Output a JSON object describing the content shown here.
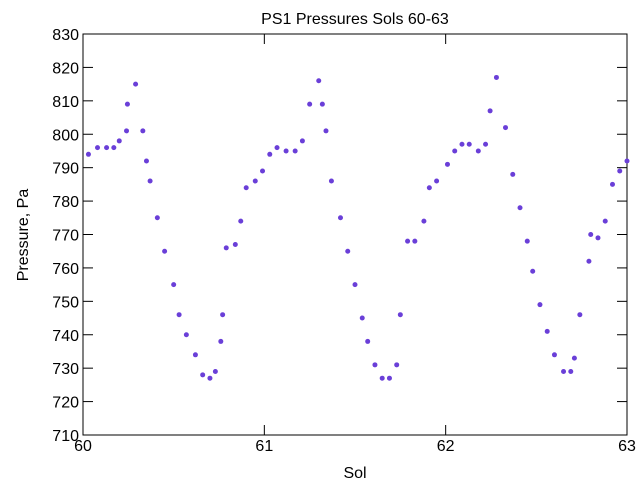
{
  "chart_data": {
    "type": "scatter",
    "title": "PS1 Pressures Sols 60-63",
    "x_label": "Sol",
    "y_label": "Pressure, Pa",
    "xlim": [
      60,
      63
    ],
    "xticks": [
      60,
      61,
      62,
      63
    ],
    "ylim": [
      710,
      830
    ],
    "yticks": [
      710,
      720,
      730,
      740,
      750,
      760,
      770,
      780,
      790,
      800,
      810,
      820,
      830
    ],
    "series": [
      {
        "color": "#6a3fd8",
        "x": [
          60.03,
          60.08,
          60.13,
          60.17,
          60.2,
          60.24,
          60.245,
          60.29,
          60.33,
          60.35,
          60.37,
          60.41,
          60.45,
          60.5,
          60.53,
          60.57,
          60.62,
          60.66,
          60.7,
          60.73,
          60.76,
          60.77,
          60.79,
          60.84,
          60.87,
          60.9,
          60.95,
          60.99,
          61.03,
          61.07,
          61.12,
          61.17,
          61.21,
          61.25,
          61.3,
          61.32,
          61.34,
          61.37,
          61.42,
          61.46,
          61.5,
          61.54,
          61.57,
          61.61,
          61.65,
          61.69,
          61.73,
          61.75,
          61.79,
          61.83,
          61.88,
          61.91,
          61.95,
          62.01,
          62.05,
          62.09,
          62.13,
          62.18,
          62.22,
          62.245,
          62.28,
          62.33,
          62.37,
          62.41,
          62.45,
          62.48,
          62.52,
          62.56,
          62.6,
          62.65,
          62.69,
          62.71,
          62.74,
          62.79,
          62.8,
          62.84,
          62.88,
          62.92,
          62.96,
          63.0
        ],
        "values": [
          794,
          796,
          796,
          796,
          798,
          801,
          809,
          815,
          801,
          792,
          786,
          775,
          765,
          755,
          746,
          740,
          734,
          728,
          727,
          729,
          738,
          746,
          766,
          767,
          774,
          784,
          786,
          789,
          794,
          796,
          795,
          795,
          798,
          809,
          816,
          809,
          801,
          786,
          775,
          765,
          755,
          745,
          738,
          731,
          727,
          727,
          731,
          746,
          768,
          768,
          774,
          784,
          786,
          791,
          795,
          797,
          797,
          795,
          797,
          807,
          817,
          802,
          788,
          778,
          768,
          759,
          749,
          741,
          734,
          729,
          729,
          733,
          746,
          762,
          770,
          769,
          774,
          785,
          789,
          792
        ]
      }
    ]
  }
}
